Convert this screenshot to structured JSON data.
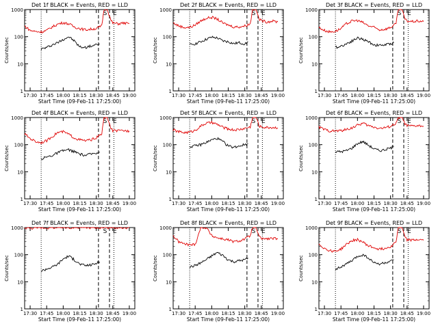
{
  "figure": {
    "panel_template": "Det {n}f BLACK = Events, RED = LLD",
    "xlabel": "Start Time (09-Feb-11 17:25:00)",
    "ylabel": "Counts/sec",
    "colors": {
      "events": "#000000",
      "lld": "#e00000",
      "axes": "#000000"
    }
  },
  "chart_data": [
    {
      "type": "line",
      "title": "Det 1f BLACK = Events, RED = LLD",
      "xlabel": "Start Time (09-Feb-11 17:25:00)",
      "ylabel": "Counts/sec",
      "y_scale": "log",
      "ylim": [
        1,
        1000
      ],
      "y_ticks": [
        1,
        10,
        100,
        1000
      ],
      "x_tick_labels": [
        "17:30",
        "17:45",
        "18:00",
        "18:15",
        "18:30",
        "18:45",
        "19:00"
      ],
      "x_ticks_min": [
        5,
        20,
        35,
        50,
        65,
        80,
        95
      ],
      "xlim_min": [
        0,
        100
      ],
      "markers": {
        "dotted_min": [
          15,
          81
        ],
        "dashed_min": [
          67,
          77
        ],
        "S": 73,
        "E": 80
      },
      "series": [
        {
          "name": "Events",
          "x_min": [
            15,
            20,
            25,
            30,
            35,
            40,
            45,
            50,
            55,
            60,
            65,
            68
          ],
          "values": [
            35,
            40,
            50,
            60,
            80,
            100,
            70,
            42,
            40,
            45,
            50,
            55
          ]
        },
        {
          "name": "LLD",
          "x_min": [
            0,
            5,
            10,
            15,
            20,
            25,
            30,
            35,
            40,
            45,
            50,
            55,
            60,
            65,
            70,
            72,
            75,
            78,
            80,
            85,
            90,
            95
          ],
          "values": [
            250,
            170,
            155,
            150,
            170,
            230,
            290,
            330,
            300,
            230,
            200,
            180,
            190,
            200,
            250,
            1000,
            1100,
            420,
            320,
            300,
            320,
            300
          ]
        }
      ]
    },
    {
      "type": "line",
      "title": "Det 2f BLACK = Events, RED = LLD",
      "xlabel": "Start Time (09-Feb-11 17:25:00)",
      "ylabel": "Counts/sec",
      "y_scale": "log",
      "ylim": [
        1,
        1000
      ],
      "y_ticks": [
        1,
        10,
        100,
        1000
      ],
      "x_tick_labels": [
        "17:30",
        "17:45",
        "18:00",
        "18:15",
        "18:30",
        "18:45",
        "19:00"
      ],
      "x_ticks_min": [
        5,
        20,
        35,
        50,
        65,
        80,
        95
      ],
      "xlim_min": [
        0,
        100
      ],
      "markers": {
        "dotted_min": [
          15,
          81
        ],
        "dashed_min": [
          67,
          77
        ],
        "S": 73,
        "E": 80
      },
      "series": [
        {
          "name": "Events",
          "x_min": [
            15,
            20,
            25,
            30,
            35,
            40,
            45,
            50,
            55,
            60,
            65,
            68
          ],
          "values": [
            50,
            55,
            65,
            80,
            95,
            90,
            70,
            65,
            55,
            60,
            55,
            65
          ]
        },
        {
          "name": "LLD",
          "x_min": [
            0,
            5,
            10,
            15,
            20,
            25,
            30,
            35,
            40,
            45,
            50,
            55,
            60,
            65,
            70,
            72,
            75,
            78,
            80,
            85,
            90,
            95
          ],
          "values": [
            320,
            250,
            220,
            220,
            270,
            380,
            480,
            520,
            450,
            320,
            270,
            230,
            230,
            250,
            300,
            1000,
            1100,
            440,
            400,
            350,
            380,
            350
          ]
        }
      ]
    },
    {
      "type": "line",
      "title": "Det 3f BLACK = Events, RED = LLD",
      "xlabel": "Start Time (09-Feb-11 17:25:00)",
      "ylabel": "Counts/sec",
      "y_scale": "log",
      "ylim": [
        1,
        1000
      ],
      "y_ticks": [
        1,
        10,
        100,
        1000
      ],
      "x_tick_labels": [
        "17:30",
        "17:45",
        "18:00",
        "18:15",
        "18:30",
        "18:45",
        "19:00"
      ],
      "x_ticks_min": [
        5,
        20,
        35,
        50,
        65,
        80,
        95
      ],
      "xlim_min": [
        0,
        100
      ],
      "markers": {
        "dotted_min": [
          15,
          81
        ],
        "dashed_min": [
          67,
          77
        ],
        "S": 73,
        "E": 80
      },
      "series": [
        {
          "name": "Events",
          "x_min": [
            15,
            20,
            25,
            30,
            35,
            40,
            45,
            50,
            55,
            60,
            65,
            68
          ],
          "values": [
            40,
            45,
            55,
            70,
            90,
            80,
            65,
            50,
            48,
            50,
            55,
            60
          ]
        },
        {
          "name": "LLD",
          "x_min": [
            0,
            5,
            10,
            15,
            20,
            25,
            30,
            35,
            40,
            45,
            50,
            55,
            60,
            65,
            70,
            72,
            75,
            78,
            80,
            85,
            90,
            95
          ],
          "values": [
            220,
            170,
            150,
            160,
            200,
            300,
            380,
            400,
            330,
            250,
            220,
            180,
            190,
            220,
            300,
            1000,
            1100,
            450,
            380,
            360,
            380,
            360
          ]
        }
      ]
    },
    {
      "type": "line",
      "title": "Det 4f BLACK = Events, RED = LLD",
      "xlabel": "Start Time (09-Feb-11 17:25:00)",
      "ylabel": "Counts/sec",
      "y_scale": "log",
      "ylim": [
        1,
        1000
      ],
      "y_ticks": [
        1,
        10,
        100,
        1000
      ],
      "x_tick_labels": [
        "17:30",
        "17:45",
        "18:00",
        "18:15",
        "18:30",
        "18:45",
        "19:00"
      ],
      "x_ticks_min": [
        5,
        20,
        35,
        50,
        65,
        80,
        95
      ],
      "xlim_min": [
        0,
        100
      ],
      "markers": {
        "dotted_min": [
          15,
          81
        ],
        "dashed_min": [
          67,
          77
        ],
        "S": 73,
        "E": 80
      },
      "series": [
        {
          "name": "Events",
          "x_min": [
            15,
            20,
            25,
            30,
            35,
            40,
            45,
            50,
            55,
            60,
            65,
            68
          ],
          "values": [
            30,
            35,
            40,
            50,
            60,
            65,
            55,
            45,
            40,
            45,
            50,
            55
          ]
        },
        {
          "name": "LLD",
          "x_min": [
            0,
            5,
            10,
            15,
            20,
            25,
            30,
            35,
            40,
            45,
            50,
            55,
            60,
            65,
            70,
            72,
            75,
            78,
            80,
            85,
            90,
            95
          ],
          "values": [
            250,
            170,
            130,
            120,
            140,
            200,
            280,
            300,
            240,
            180,
            150,
            140,
            150,
            180,
            250,
            1000,
            1100,
            420,
            330,
            320,
            330,
            320
          ]
        }
      ]
    },
    {
      "type": "line",
      "title": "Det 5f BLACK = Events, RED = LLD",
      "xlabel": "Start Time (09-Feb-11 17:25:00)",
      "ylabel": "Counts/sec",
      "y_scale": "log",
      "ylim": [
        1,
        1000
      ],
      "y_ticks": [
        1,
        10,
        100,
        1000
      ],
      "x_tick_labels": [
        "17:30",
        "17:45",
        "18:00",
        "18:15",
        "18:30",
        "18:45",
        "19:00"
      ],
      "x_ticks_min": [
        5,
        20,
        35,
        50,
        65,
        80,
        95
      ],
      "xlim_min": [
        0,
        100
      ],
      "markers": {
        "dotted_min": [
          15,
          81
        ],
        "dashed_min": [
          67,
          77
        ],
        "S": 73,
        "E": 80
      },
      "series": [
        {
          "name": "Events",
          "x_min": [
            15,
            20,
            25,
            30,
            35,
            40,
            45,
            50,
            55,
            60,
            65,
            68
          ],
          "values": [
            85,
            90,
            100,
            120,
            150,
            170,
            130,
            90,
            80,
            90,
            100,
            110
          ]
        },
        {
          "name": "LLD",
          "x_min": [
            0,
            5,
            10,
            15,
            20,
            25,
            30,
            35,
            40,
            45,
            50,
            55,
            60,
            65,
            70,
            72,
            75,
            78,
            80,
            85,
            90,
            95
          ],
          "values": [
            350,
            300,
            280,
            290,
            340,
            480,
            620,
            650,
            560,
            440,
            380,
            350,
            360,
            400,
            450,
            1000,
            1100,
            500,
            450,
            430,
            430,
            420
          ]
        }
      ]
    },
    {
      "type": "line",
      "title": "Det 6f BLACK = Events, RED = LLD",
      "xlabel": "Start Time (09-Feb-11 17:25:00)",
      "ylabel": "Counts/sec",
      "y_scale": "log",
      "ylim": [
        1,
        1000
      ],
      "y_ticks": [
        1,
        10,
        100,
        1000
      ],
      "x_tick_labels": [
        "17:30",
        "17:45",
        "18:00",
        "18:15",
        "18:30",
        "18:45",
        "19:00"
      ],
      "x_ticks_min": [
        5,
        20,
        35,
        50,
        65,
        80,
        95
      ],
      "xlim_min": [
        0,
        100
      ],
      "markers": {
        "dotted_min": [
          15,
          81
        ],
        "dashed_min": [
          67,
          77
        ],
        "S": 73,
        "E": 80
      },
      "series": [
        {
          "name": "Events",
          "x_min": [
            15,
            20,
            25,
            30,
            35,
            40,
            45,
            50,
            55,
            60,
            65,
            68
          ],
          "values": [
            55,
            55,
            60,
            75,
            110,
            130,
            95,
            70,
            60,
            65,
            75,
            85
          ]
        },
        {
          "name": "LLD",
          "x_min": [
            0,
            5,
            10,
            15,
            20,
            25,
            30,
            35,
            40,
            45,
            50,
            55,
            60,
            65,
            70,
            72,
            75,
            78,
            80,
            85,
            90,
            95
          ],
          "values": [
            450,
            360,
            320,
            320,
            330,
            360,
            420,
            520,
            620,
            500,
            450,
            400,
            420,
            480,
            600,
            1000,
            1100,
            600,
            500,
            480,
            500,
            480
          ]
        }
      ]
    },
    {
      "type": "line",
      "title": "Det 7f BLACK = Events, RED = LLD",
      "xlabel": "Start Time (09-Feb-11 17:25:00)",
      "ylabel": "Counts/sec",
      "y_scale": "log",
      "ylim": [
        1,
        1000
      ],
      "y_ticks": [
        1,
        10,
        100,
        1000
      ],
      "x_tick_labels": [
        "17:30",
        "17:45",
        "18:00",
        "18:15",
        "18:30",
        "18:45",
        "19:00"
      ],
      "x_ticks_min": [
        5,
        20,
        35,
        50,
        65,
        80,
        95
      ],
      "xlim_min": [
        0,
        100
      ],
      "markers": {
        "dotted_min": [
          15,
          81
        ],
        "dashed_min": [
          67,
          77
        ],
        "S": 73,
        "E": 80
      },
      "series": [
        {
          "name": "Events",
          "x_min": [
            15,
            20,
            25,
            30,
            35,
            40,
            45,
            50,
            55,
            60,
            65,
            68
          ],
          "values": [
            25,
            30,
            35,
            45,
            70,
            90,
            65,
            45,
            40,
            42,
            48,
            55
          ]
        },
        {
          "name": "LLD",
          "x_min": [
            0,
            5,
            10,
            15,
            20,
            25,
            30,
            35,
            40,
            45,
            50,
            55,
            60,
            65,
            70,
            72,
            75,
            78,
            80,
            85,
            90,
            95
          ],
          "values": [
            1000,
            950,
            1000,
            1000,
            980,
            1000,
            1000,
            1000,
            1000,
            1000,
            990,
            1000,
            1000,
            1000,
            1000,
            1000,
            1000,
            1000,
            1000,
            1000,
            1000,
            1000
          ]
        }
      ]
    },
    {
      "type": "line",
      "title": "Det 8f BLACK = Events, RED = LLD",
      "xlabel": "Start Time (09-Feb-11 17:25:00)",
      "ylabel": "Counts/sec",
      "y_scale": "log",
      "ylim": [
        1,
        1000
      ],
      "y_ticks": [
        1,
        10,
        100,
        1000
      ],
      "x_tick_labels": [
        "17:30",
        "17:45",
        "18:00",
        "18:15",
        "18:30",
        "18:45",
        "19:00"
      ],
      "x_ticks_min": [
        5,
        20,
        35,
        50,
        65,
        80,
        95
      ],
      "xlim_min": [
        0,
        100
      ],
      "markers": {
        "dotted_min": [
          15,
          81
        ],
        "dashed_min": [
          67,
          77
        ],
        "S": 73,
        "E": 80
      },
      "series": [
        {
          "name": "Events",
          "x_min": [
            15,
            20,
            25,
            30,
            35,
            40,
            45,
            50,
            55,
            60,
            65,
            68
          ],
          "values": [
            35,
            40,
            50,
            65,
            90,
            120,
            95,
            65,
            55,
            60,
            65,
            75
          ]
        },
        {
          "name": "LLD",
          "x_min": [
            0,
            5,
            10,
            15,
            20,
            25,
            30,
            35,
            40,
            45,
            50,
            55,
            60,
            65,
            70,
            72,
            75,
            78,
            80,
            85,
            90,
            95
          ],
          "values": [
            500,
            300,
            250,
            230,
            240,
            1000,
            1000,
            500,
            420,
            380,
            350,
            300,
            320,
            380,
            500,
            1000,
            1100,
            450,
            400,
            380,
            400,
            380
          ]
        }
      ]
    },
    {
      "type": "line",
      "title": "Det 9f BLACK = Events, RED = LLD",
      "xlabel": "Start Time (09-Feb-11 17:25:00)",
      "ylabel": "Counts/sec",
      "y_scale": "log",
      "ylim": [
        1,
        1000
      ],
      "y_ticks": [
        1,
        10,
        100,
        1000
      ],
      "x_tick_labels": [
        "17:30",
        "17:45",
        "18:00",
        "18:15",
        "18:30",
        "18:45",
        "19:00"
      ],
      "x_ticks_min": [
        5,
        20,
        35,
        50,
        65,
        80,
        95
      ],
      "xlim_min": [
        0,
        100
      ],
      "markers": {
        "dotted_min": [
          15,
          81
        ],
        "dashed_min": [
          67,
          77
        ],
        "S": 73,
        "E": 80
      },
      "series": [
        {
          "name": "Events",
          "x_min": [
            15,
            20,
            25,
            30,
            35,
            40,
            45,
            50,
            55,
            60,
            65,
            68
          ],
          "values": [
            30,
            35,
            45,
            60,
            85,
            100,
            75,
            50,
            45,
            50,
            55,
            65
          ]
        },
        {
          "name": "LLD",
          "x_min": [
            0,
            5,
            10,
            15,
            20,
            25,
            30,
            35,
            40,
            45,
            50,
            55,
            60,
            65,
            70,
            72,
            75,
            78,
            80,
            85,
            90,
            95
          ],
          "values": [
            250,
            170,
            140,
            135,
            160,
            240,
            330,
            360,
            290,
            210,
            180,
            160,
            170,
            200,
            300,
            1000,
            1100,
            450,
            360,
            340,
            360,
            340
          ]
        }
      ]
    }
  ]
}
